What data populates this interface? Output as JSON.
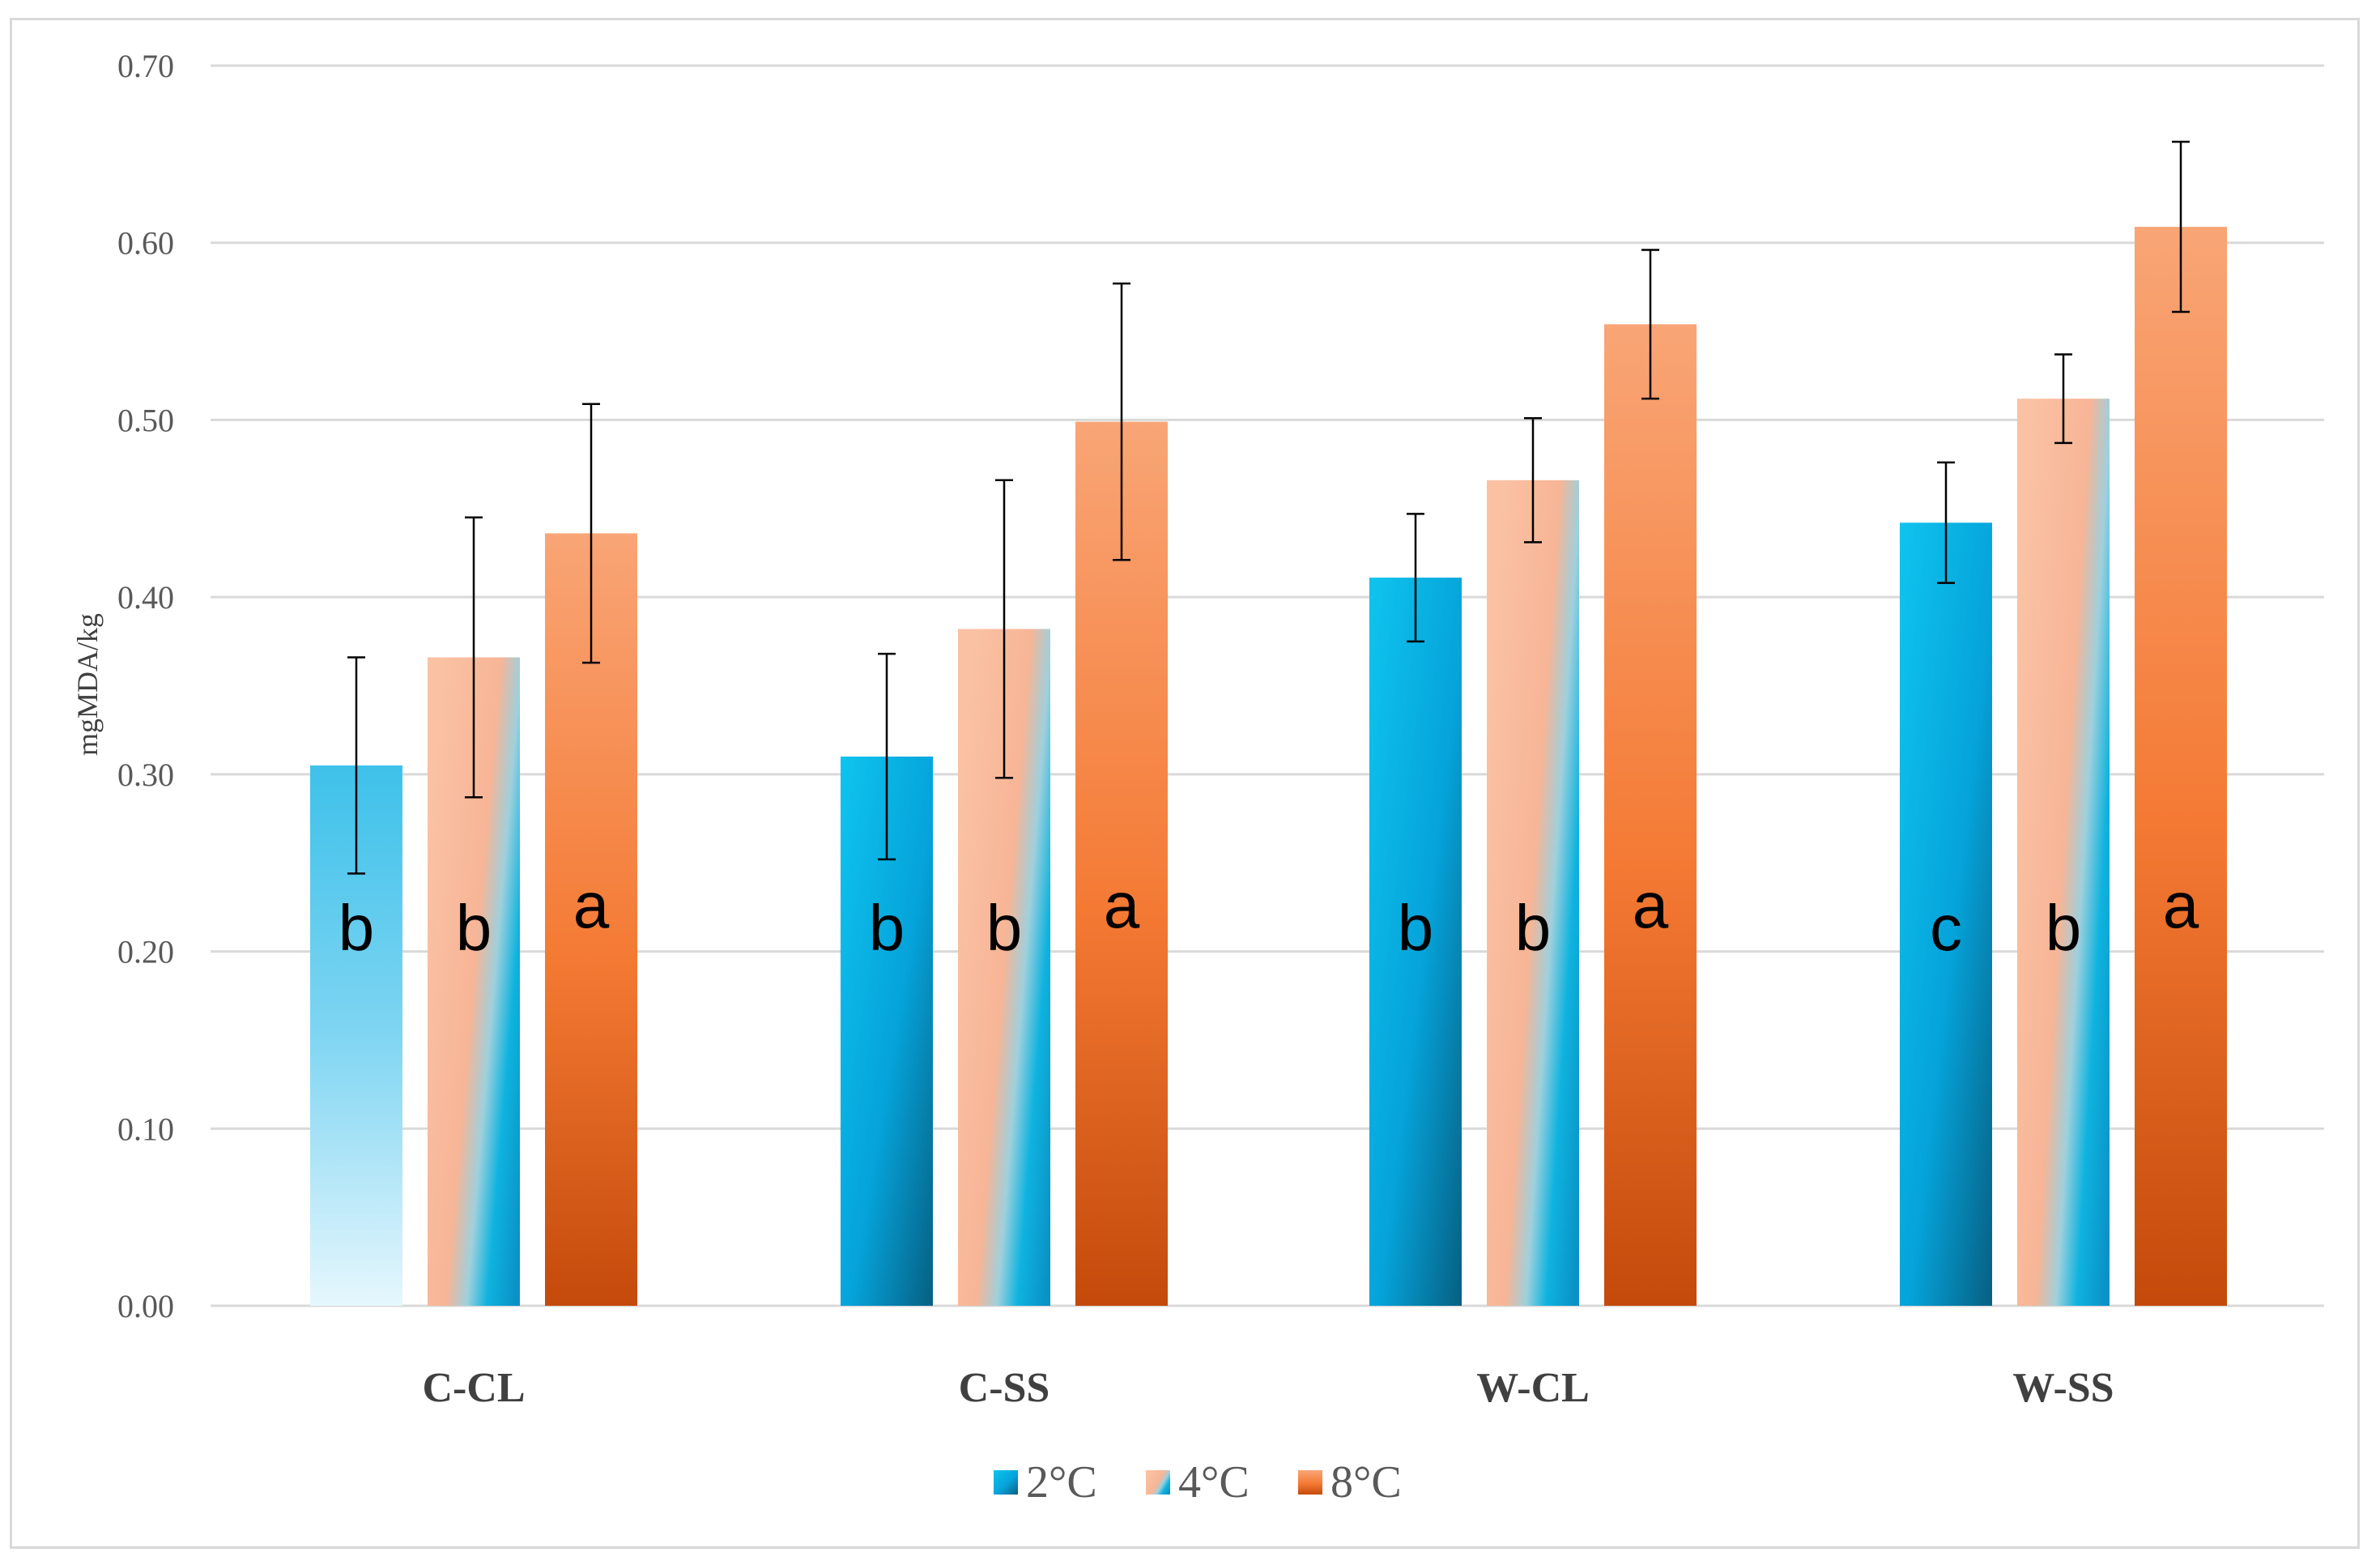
{
  "chart_data": {
    "type": "bar",
    "title": "",
    "xlabel": "",
    "ylabel": "mgMDA/kg",
    "ylim": [
      0,
      0.7
    ],
    "yticks": [
      "0.00",
      "0.10",
      "0.20",
      "0.30",
      "0.40",
      "0.50",
      "0.60",
      "0.70"
    ],
    "grid": true,
    "legend_position": "bottom-center",
    "categories": [
      "C-CL",
      "C-SS",
      "W-CL",
      "W-SS"
    ],
    "series": [
      {
        "name": "2°C",
        "values": [
          0.305,
          0.31,
          0.411,
          0.442
        ],
        "errors": [
          0.061,
          0.058,
          0.036,
          0.034
        ],
        "letters": [
          "b",
          "b",
          "b",
          "c"
        ]
      },
      {
        "name": "4°C",
        "values": [
          0.366,
          0.382,
          0.466,
          0.512
        ],
        "errors": [
          0.079,
          0.084,
          0.035,
          0.025
        ],
        "letters": [
          "b",
          "b",
          "b",
          "b"
        ]
      },
      {
        "name": "8°C",
        "values": [
          0.436,
          0.499,
          0.554,
          0.609
        ],
        "errors": [
          0.073,
          0.078,
          0.042,
          0.048
        ],
        "letters": [
          "a",
          "a",
          "a",
          "a"
        ]
      }
    ],
    "colors": {
      "blue_light": "#5cd3f2",
      "blue_dark": "#0a6f95",
      "peach_light": "#fcd6c2",
      "peach": "#f7b393",
      "orange_top": "#f9a070",
      "orange_mid": "#f57a33",
      "orange_bottom": "#c54a0c",
      "grid": "#d9d9d9",
      "axis_text": "#595959",
      "error_bar": "#000000"
    }
  }
}
